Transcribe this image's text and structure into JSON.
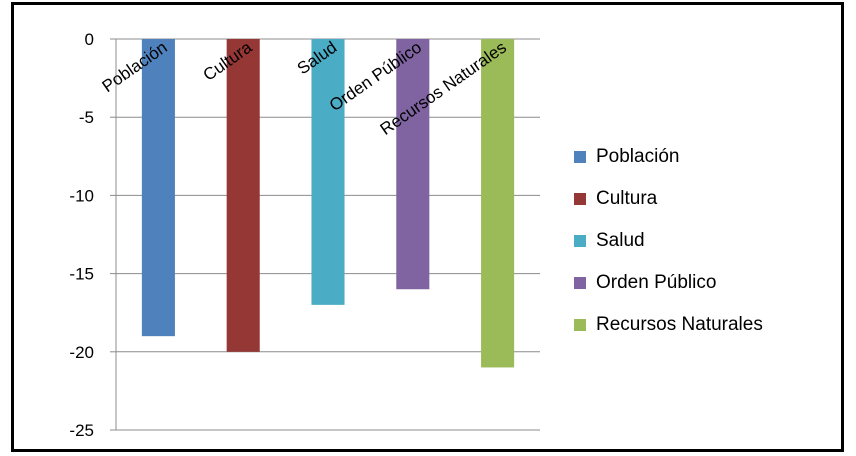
{
  "chart_data": {
    "type": "bar",
    "categories": [
      "Población",
      "Cultura",
      "Salud",
      "Orden Público",
      "Recursos Naturales"
    ],
    "values": [
      -19,
      -20,
      -17,
      -16,
      -21
    ],
    "colors": [
      "#4f81bd",
      "#953735",
      "#4bacc6",
      "#8064a2",
      "#9bbb59"
    ],
    "ylim": [
      -25,
      0
    ],
    "yticks": [
      0,
      -5,
      -10,
      -15,
      -20,
      -25
    ],
    "grid": true,
    "legend_position": "right",
    "title": "",
    "xlabel": "",
    "ylabel": ""
  },
  "legend": {
    "items": [
      {
        "label": "Población",
        "color": "#4f81bd"
      },
      {
        "label": "Cultura",
        "color": "#953735"
      },
      {
        "label": "Salud",
        "color": "#4bacc6"
      },
      {
        "label": "Orden Público",
        "color": "#8064a2"
      },
      {
        "label": "Recursos Naturales",
        "color": "#9bbb59"
      }
    ]
  }
}
